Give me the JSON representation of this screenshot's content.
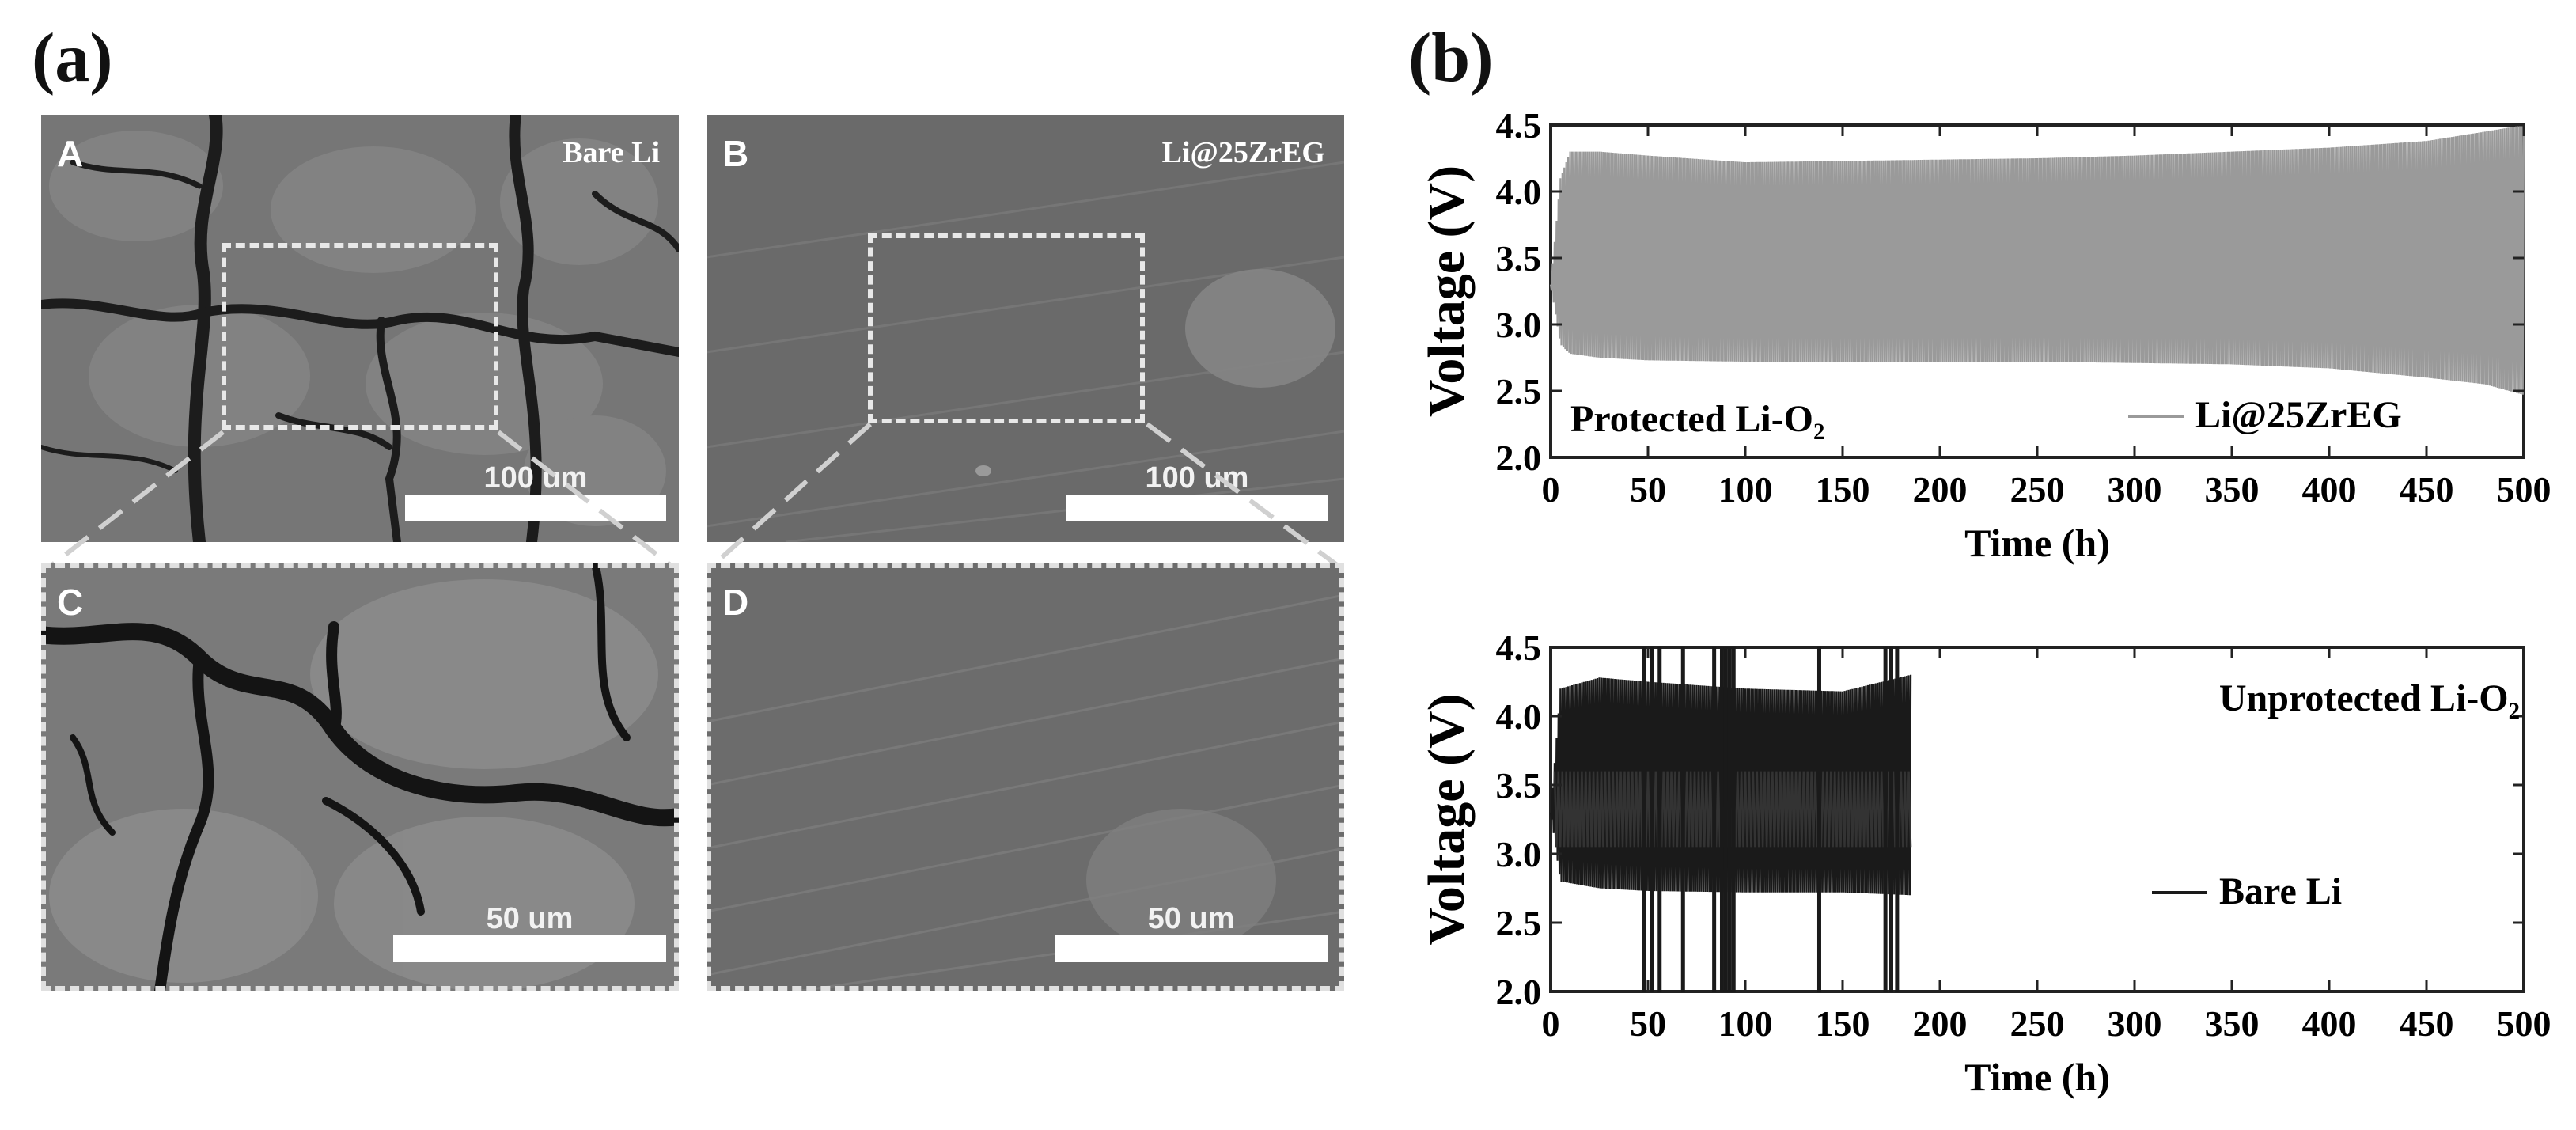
{
  "figure": {
    "panel_a_label": "(a)",
    "panel_b_label": "(b)"
  },
  "sem_images": [
    {
      "letter": "A",
      "sample": "Bare Li",
      "scale": "100 um"
    },
    {
      "letter": "B",
      "sample": "Li@25ZrEG",
      "scale": "100 um"
    },
    {
      "letter": "C",
      "sample": "",
      "scale": "50 um"
    },
    {
      "letter": "D",
      "sample": "",
      "scale": "50 um"
    }
  ],
  "chart_data": [
    {
      "type": "line",
      "xlabel": "Time (h)",
      "ylabel": "Voltage (V)",
      "xlim": [
        0,
        500
      ],
      "ylim": [
        2.0,
        4.5
      ],
      "xticks": [
        "0",
        "50",
        "100",
        "150",
        "200",
        "250",
        "300",
        "350",
        "400",
        "450",
        "500"
      ],
      "yticks": [
        "2.0",
        "2.5",
        "3.0",
        "3.5",
        "4.0",
        "4.5"
      ],
      "annotation": "Protected Li-O₂",
      "legend": "Li@25ZrEG",
      "series_color": "#9a9a9a",
      "envelope": {
        "time_h": [
          0,
          5,
          10,
          25,
          50,
          100,
          150,
          200,
          250,
          300,
          350,
          400,
          450,
          480,
          500
        ],
        "charge_V": [
          3.3,
          4.1,
          4.3,
          4.3,
          4.27,
          4.22,
          4.23,
          4.24,
          4.25,
          4.27,
          4.3,
          4.33,
          4.38,
          4.45,
          4.5
        ],
        "discharge_V": [
          3.3,
          2.85,
          2.78,
          2.75,
          2.73,
          2.72,
          2.72,
          2.72,
          2.72,
          2.71,
          2.7,
          2.67,
          2.6,
          2.55,
          2.47
        ]
      }
    },
    {
      "type": "line",
      "xlabel": "Time (h)",
      "ylabel": "Voltage (V)",
      "xlim": [
        0,
        500
      ],
      "ylim": [
        2.0,
        4.5
      ],
      "xticks": [
        "0",
        "50",
        "100",
        "150",
        "200",
        "250",
        "300",
        "350",
        "400",
        "450",
        "500"
      ],
      "yticks": [
        "2.0",
        "2.5",
        "3.0",
        "3.5",
        "4.0",
        "4.5"
      ],
      "annotation": "Unprotected Li-O₂",
      "legend": "Bare Li",
      "series_color": "#1a1a1a",
      "envelope": {
        "time_h": [
          0,
          5,
          25,
          50,
          100,
          150,
          185
        ],
        "charge_V": [
          3.3,
          4.2,
          4.28,
          4.25,
          4.2,
          4.18,
          4.3
        ],
        "discharge_V": [
          3.3,
          2.8,
          2.75,
          2.73,
          2.72,
          2.72,
          2.7
        ]
      },
      "end_time_h": 185,
      "spikes_time_h": [
        48,
        52,
        56,
        68,
        84,
        88,
        90,
        92,
        94,
        138,
        172,
        175,
        178
      ]
    }
  ]
}
